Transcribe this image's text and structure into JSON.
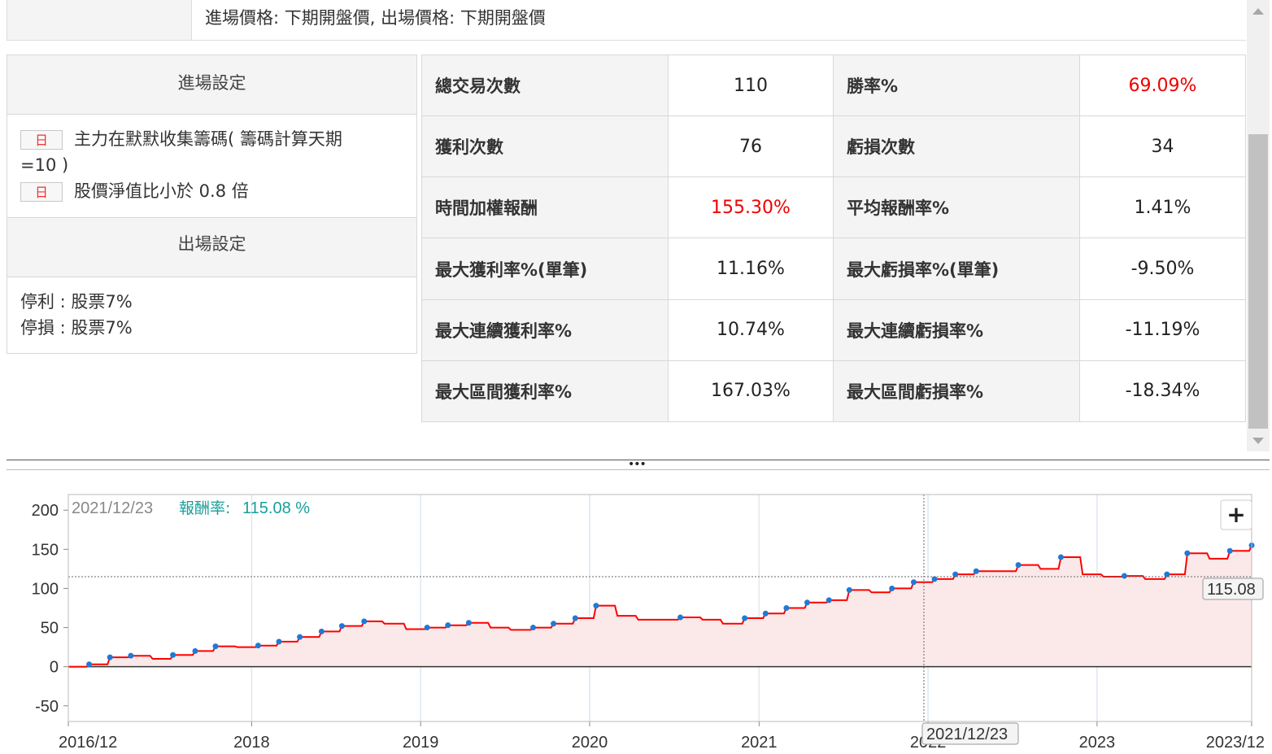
{
  "header": {
    "price_rule": "進場價格: 下期開盤價, 出場價格: 下期開盤價"
  },
  "settings": {
    "entry_title": "進場設定",
    "entry_conditions": [
      {
        "tag": "日",
        "text": "主力在默默收集籌碼( 籌碼計算天期",
        "text_cont": "=10 )"
      },
      {
        "tag": "日",
        "text": "股價淨值比小於 0.8 倍"
      }
    ],
    "exit_title": "出場設定",
    "exit_rules": [
      "停利 : 股票7%",
      "停損 : 股票7%"
    ]
  },
  "stats": {
    "rows": [
      {
        "l1": "總交易次數",
        "v1": "110",
        "l2": "勝率%",
        "v2": "69.09%"
      },
      {
        "l1": "獲利次數",
        "v1": "76",
        "l2": "虧損次數",
        "v2": "34"
      },
      {
        "l1": "時間加權報酬",
        "v1": "155.30%",
        "l2": "平均報酬率%",
        "v2": "1.41%"
      },
      {
        "l1": "最大獲利率%(單筆)",
        "v1": "11.16%",
        "l2": "最大虧損率%(單筆)",
        "v2": "-9.50%"
      },
      {
        "l1": "最大連續獲利率%",
        "v1": "10.74%",
        "l2": "最大連續虧損率%",
        "v2": "-11.19%"
      },
      {
        "l1": "最大區間獲利率%",
        "v1": "167.03%",
        "l2": "最大區間虧損率%",
        "v2": "-18.34%"
      }
    ]
  },
  "splitter": {
    "handle": "•••"
  },
  "chart": {
    "tooltip_date": "2021/12/23",
    "tooltip_label": "報酬率:",
    "tooltip_value": "115.08 %",
    "crosshair_value": "115.08",
    "crosshair_date": "2021/12/23",
    "zoom_button": "+"
  },
  "colors": {
    "line": "#ff0000",
    "fill": "#fbe9e9",
    "dots": "#1f7ad6",
    "accent_red": "#e00000",
    "tooltip_teal": "#1a9e9a"
  },
  "chart_data": {
    "type": "line",
    "ylim": [
      -70,
      220
    ],
    "yticks": [
      200,
      150,
      100,
      50,
      0,
      -50
    ],
    "xticks": [
      "2016/12",
      "2018",
      "2019",
      "2020",
      "2021",
      "2022",
      "2023",
      "2023/12"
    ],
    "series": [
      {
        "x": [
          "2016-12-01",
          "2017-01-15",
          "2017-03-01",
          "2017-04-15",
          "2017-06-01",
          "2017-07-15",
          "2017-09-01",
          "2017-10-15",
          "2017-12-01",
          "2018-01-15",
          "2018-03-01",
          "2018-04-15",
          "2018-06-01",
          "2018-07-15",
          "2018-09-01",
          "2018-10-15",
          "2018-12-01",
          "2019-01-15",
          "2019-03-01",
          "2019-04-15",
          "2019-06-01",
          "2019-07-15",
          "2019-09-01",
          "2019-10-15",
          "2019-12-01",
          "2020-01-15",
          "2020-03-01",
          "2020-04-15",
          "2020-06-01",
          "2020-07-15",
          "2020-09-01",
          "2020-10-15",
          "2020-12-01",
          "2021-01-15",
          "2021-03-01",
          "2021-04-15",
          "2021-06-01",
          "2021-07-15",
          "2021-09-01",
          "2021-10-15",
          "2021-12-01",
          "2022-01-15",
          "2022-03-01",
          "2022-04-15",
          "2022-06-01",
          "2022-07-15",
          "2022-09-01",
          "2022-10-15",
          "2022-12-01",
          "2023-01-15",
          "2023-03-01",
          "2023-04-15",
          "2023-06-01",
          "2023-07-15",
          "2023-09-01",
          "2023-10-15",
          "2023-12-01"
        ],
        "y": [
          0,
          3,
          12,
          14,
          10,
          15,
          20,
          26,
          25,
          27,
          32,
          38,
          45,
          52,
          58,
          55,
          48,
          50,
          53,
          56,
          50,
          47,
          50,
          55,
          62,
          78,
          65,
          60,
          60,
          63,
          60,
          55,
          62,
          68,
          75,
          82,
          85,
          98,
          95,
          100,
          108,
          112,
          118,
          122,
          122,
          130,
          125,
          140,
          118,
          115,
          116,
          112,
          118,
          145,
          138,
          148,
          155
        ]
      }
    ],
    "tooltip_x": "2021-12-23",
    "tooltip_y": 115.08
  }
}
